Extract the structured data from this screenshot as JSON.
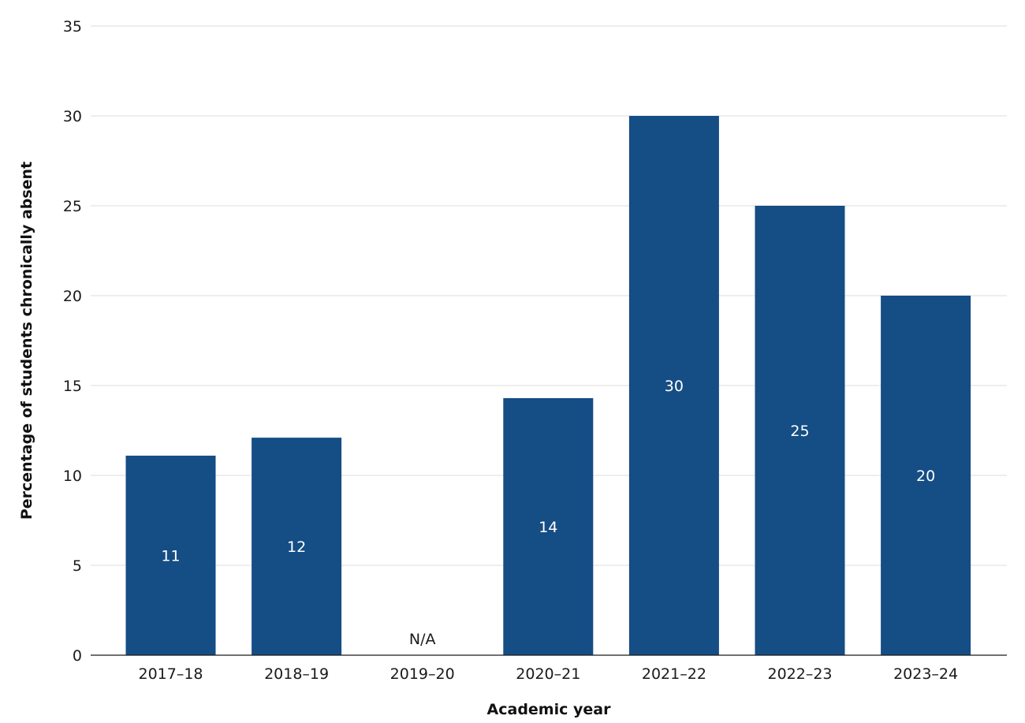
{
  "chart_data": {
    "type": "bar",
    "xlabel": "Academic year",
    "ylabel": "Percentage of students chronically absent",
    "ylim": [
      0,
      35
    ],
    "yticks": [
      0,
      5,
      10,
      15,
      20,
      25,
      30,
      35
    ],
    "grid": true,
    "legend": "none",
    "bar_color": "#154d85",
    "categories": [
      "2017–18",
      "2018–19",
      "2019–20",
      "2020–21",
      "2021–22",
      "2022–23",
      "2023–24"
    ],
    "values": [
      11.1,
      12.1,
      null,
      14.3,
      30,
      25,
      20
    ],
    "data_labels": [
      "11",
      "12",
      "N/A",
      "14",
      "30",
      "25",
      "20"
    ]
  }
}
